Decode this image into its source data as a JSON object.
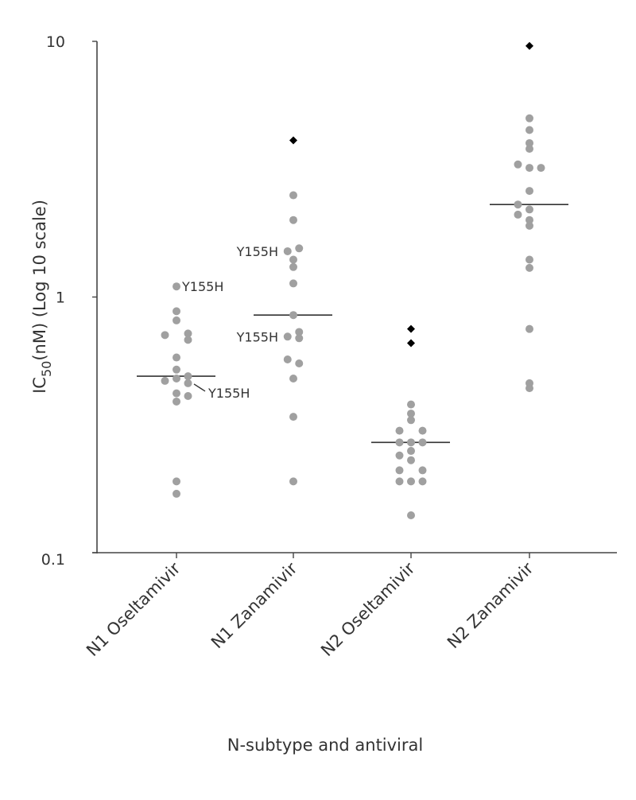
{
  "chart_data": {
    "type": "scatter",
    "subtype": "dot-strip-plot",
    "title": "",
    "xlabel": "N-subtype and antiviral",
    "ylabel": {
      "main": "IC",
      "sub": "50",
      "rest": "(nM)  (Log 10 scale)"
    },
    "yscale": "log",
    "ylim": [
      0.1,
      10
    ],
    "yticks": [
      {
        "value": 10,
        "label": "10"
      },
      {
        "value": 1,
        "label": "1"
      },
      {
        "value": 0.1,
        "label": "0.1"
      }
    ],
    "grid": false,
    "categories": [
      "N1 Oseltamivir",
      "N1 Zanamivir",
      "N2  Oseltamivir",
      "N2 Zanamivir"
    ],
    "colors": {
      "points": "#a0a0a0",
      "outliers": "#000000",
      "median": "#333333",
      "axis": "#444444"
    },
    "series": [
      {
        "category": "N1 Oseltamivir",
        "values": [
          1.1,
          0.88,
          0.81,
          0.71,
          0.72,
          0.68,
          0.58,
          0.52,
          0.48,
          0.47,
          0.49,
          0.46,
          0.42,
          0.41,
          0.39,
          0.19,
          0.17
        ],
        "outliers": [],
        "median": 0.49
      },
      {
        "category": "N1 Zanamivir",
        "values": [
          2.5,
          2.0,
          1.55,
          1.51,
          1.4,
          1.31,
          1.13,
          0.85,
          0.73,
          0.69,
          0.7,
          0.57,
          0.55,
          0.48,
          0.34,
          0.19
        ],
        "outliers": [
          4.1
        ],
        "median": 0.85
      },
      {
        "category": "N2  Oseltamivir",
        "values": [
          0.38,
          0.35,
          0.33,
          0.3,
          0.3,
          0.27,
          0.27,
          0.27,
          0.25,
          0.24,
          0.23,
          0.21,
          0.21,
          0.19,
          0.19,
          0.19,
          0.14
        ],
        "outliers": [
          0.75,
          0.66
        ],
        "median": 0.27
      },
      {
        "category": "N2 Zanamivir",
        "values": [
          5.0,
          4.5,
          4.0,
          3.8,
          3.3,
          3.2,
          3.2,
          2.6,
          2.3,
          2.2,
          2.1,
          2.0,
          1.9,
          1.4,
          1.3,
          0.75,
          0.46,
          0.44
        ],
        "outliers": [
          9.6
        ],
        "median": 2.3
      }
    ],
    "annotations": [
      {
        "series": 0,
        "value": 1.1,
        "label": "Y155H"
      },
      {
        "series": 0,
        "value": 0.46,
        "label": "Y155H"
      },
      {
        "series": 1,
        "value": 1.51,
        "label": "Y155H"
      },
      {
        "series": 1,
        "value": 0.7,
        "label": "Y155H"
      }
    ]
  }
}
